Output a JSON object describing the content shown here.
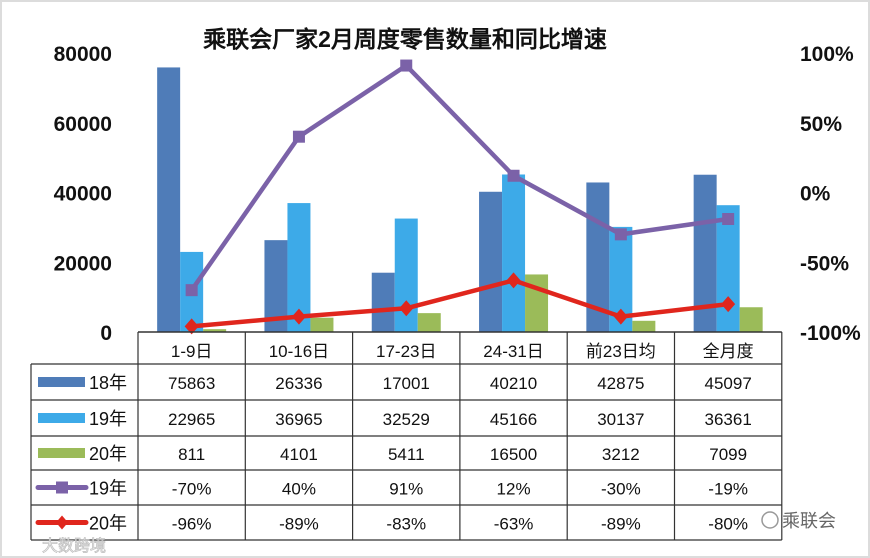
{
  "chart_data": {
    "type": "bar",
    "title": "乘联会厂家2月周度零售数量和同比增速",
    "categories": [
      "1-9日",
      "10-16日",
      "17-23日",
      "24-31日",
      "前23日均",
      "全月度"
    ],
    "left_axis": {
      "ylim": [
        0,
        80000
      ],
      "ticks": [
        "0",
        "20000",
        "40000",
        "60000",
        "80000"
      ],
      "tick_values": [
        0,
        20000,
        40000,
        60000,
        80000
      ]
    },
    "right_axis": {
      "ylim": [
        -100,
        100
      ],
      "ticks": [
        "-100%",
        "-50%",
        "0%",
        "50%",
        "100%"
      ],
      "tick_values": [
        -100,
        -50,
        0,
        50,
        100
      ]
    },
    "bar_series": [
      {
        "name": "18年",
        "color": "#4f7cb8",
        "values": [
          75863,
          26336,
          17001,
          40210,
          42875,
          45097
        ],
        "labels": [
          "75863",
          "26336",
          "17001",
          "40210",
          "42875",
          "45097"
        ]
      },
      {
        "name": "19年",
        "color": "#3daae8",
        "values": [
          22965,
          36965,
          32529,
          45166,
          30137,
          36361
        ],
        "labels": [
          "22965",
          "36965",
          "32529",
          "45166",
          "30137",
          "36361"
        ]
      },
      {
        "name": "20年",
        "color": "#9bbb59",
        "values": [
          811,
          4101,
          5411,
          16500,
          3212,
          7099
        ],
        "labels": [
          "811",
          "4101",
          "5411",
          "16500",
          "3212",
          "7099"
        ]
      }
    ],
    "line_series": [
      {
        "name": "19年",
        "color": "#7b62a8",
        "marker": "square",
        "values": [
          -70,
          40,
          91,
          12,
          -30,
          -19
        ],
        "labels": [
          "-70%",
          "40%",
          "91%",
          "12%",
          "-30%",
          "-19%"
        ]
      },
      {
        "name": "20年",
        "color": "#e0261d",
        "marker": "diamond",
        "values": [
          -96,
          -89,
          -83,
          -63,
          -89,
          -80
        ],
        "labels": [
          "-96%",
          "-89%",
          "-83%",
          "-63%",
          "-89%",
          "-80%"
        ]
      }
    ],
    "legend_placement": "data-table",
    "grid": false
  },
  "watermarks": {
    "left": "大数跨境",
    "right": "乘联会"
  }
}
